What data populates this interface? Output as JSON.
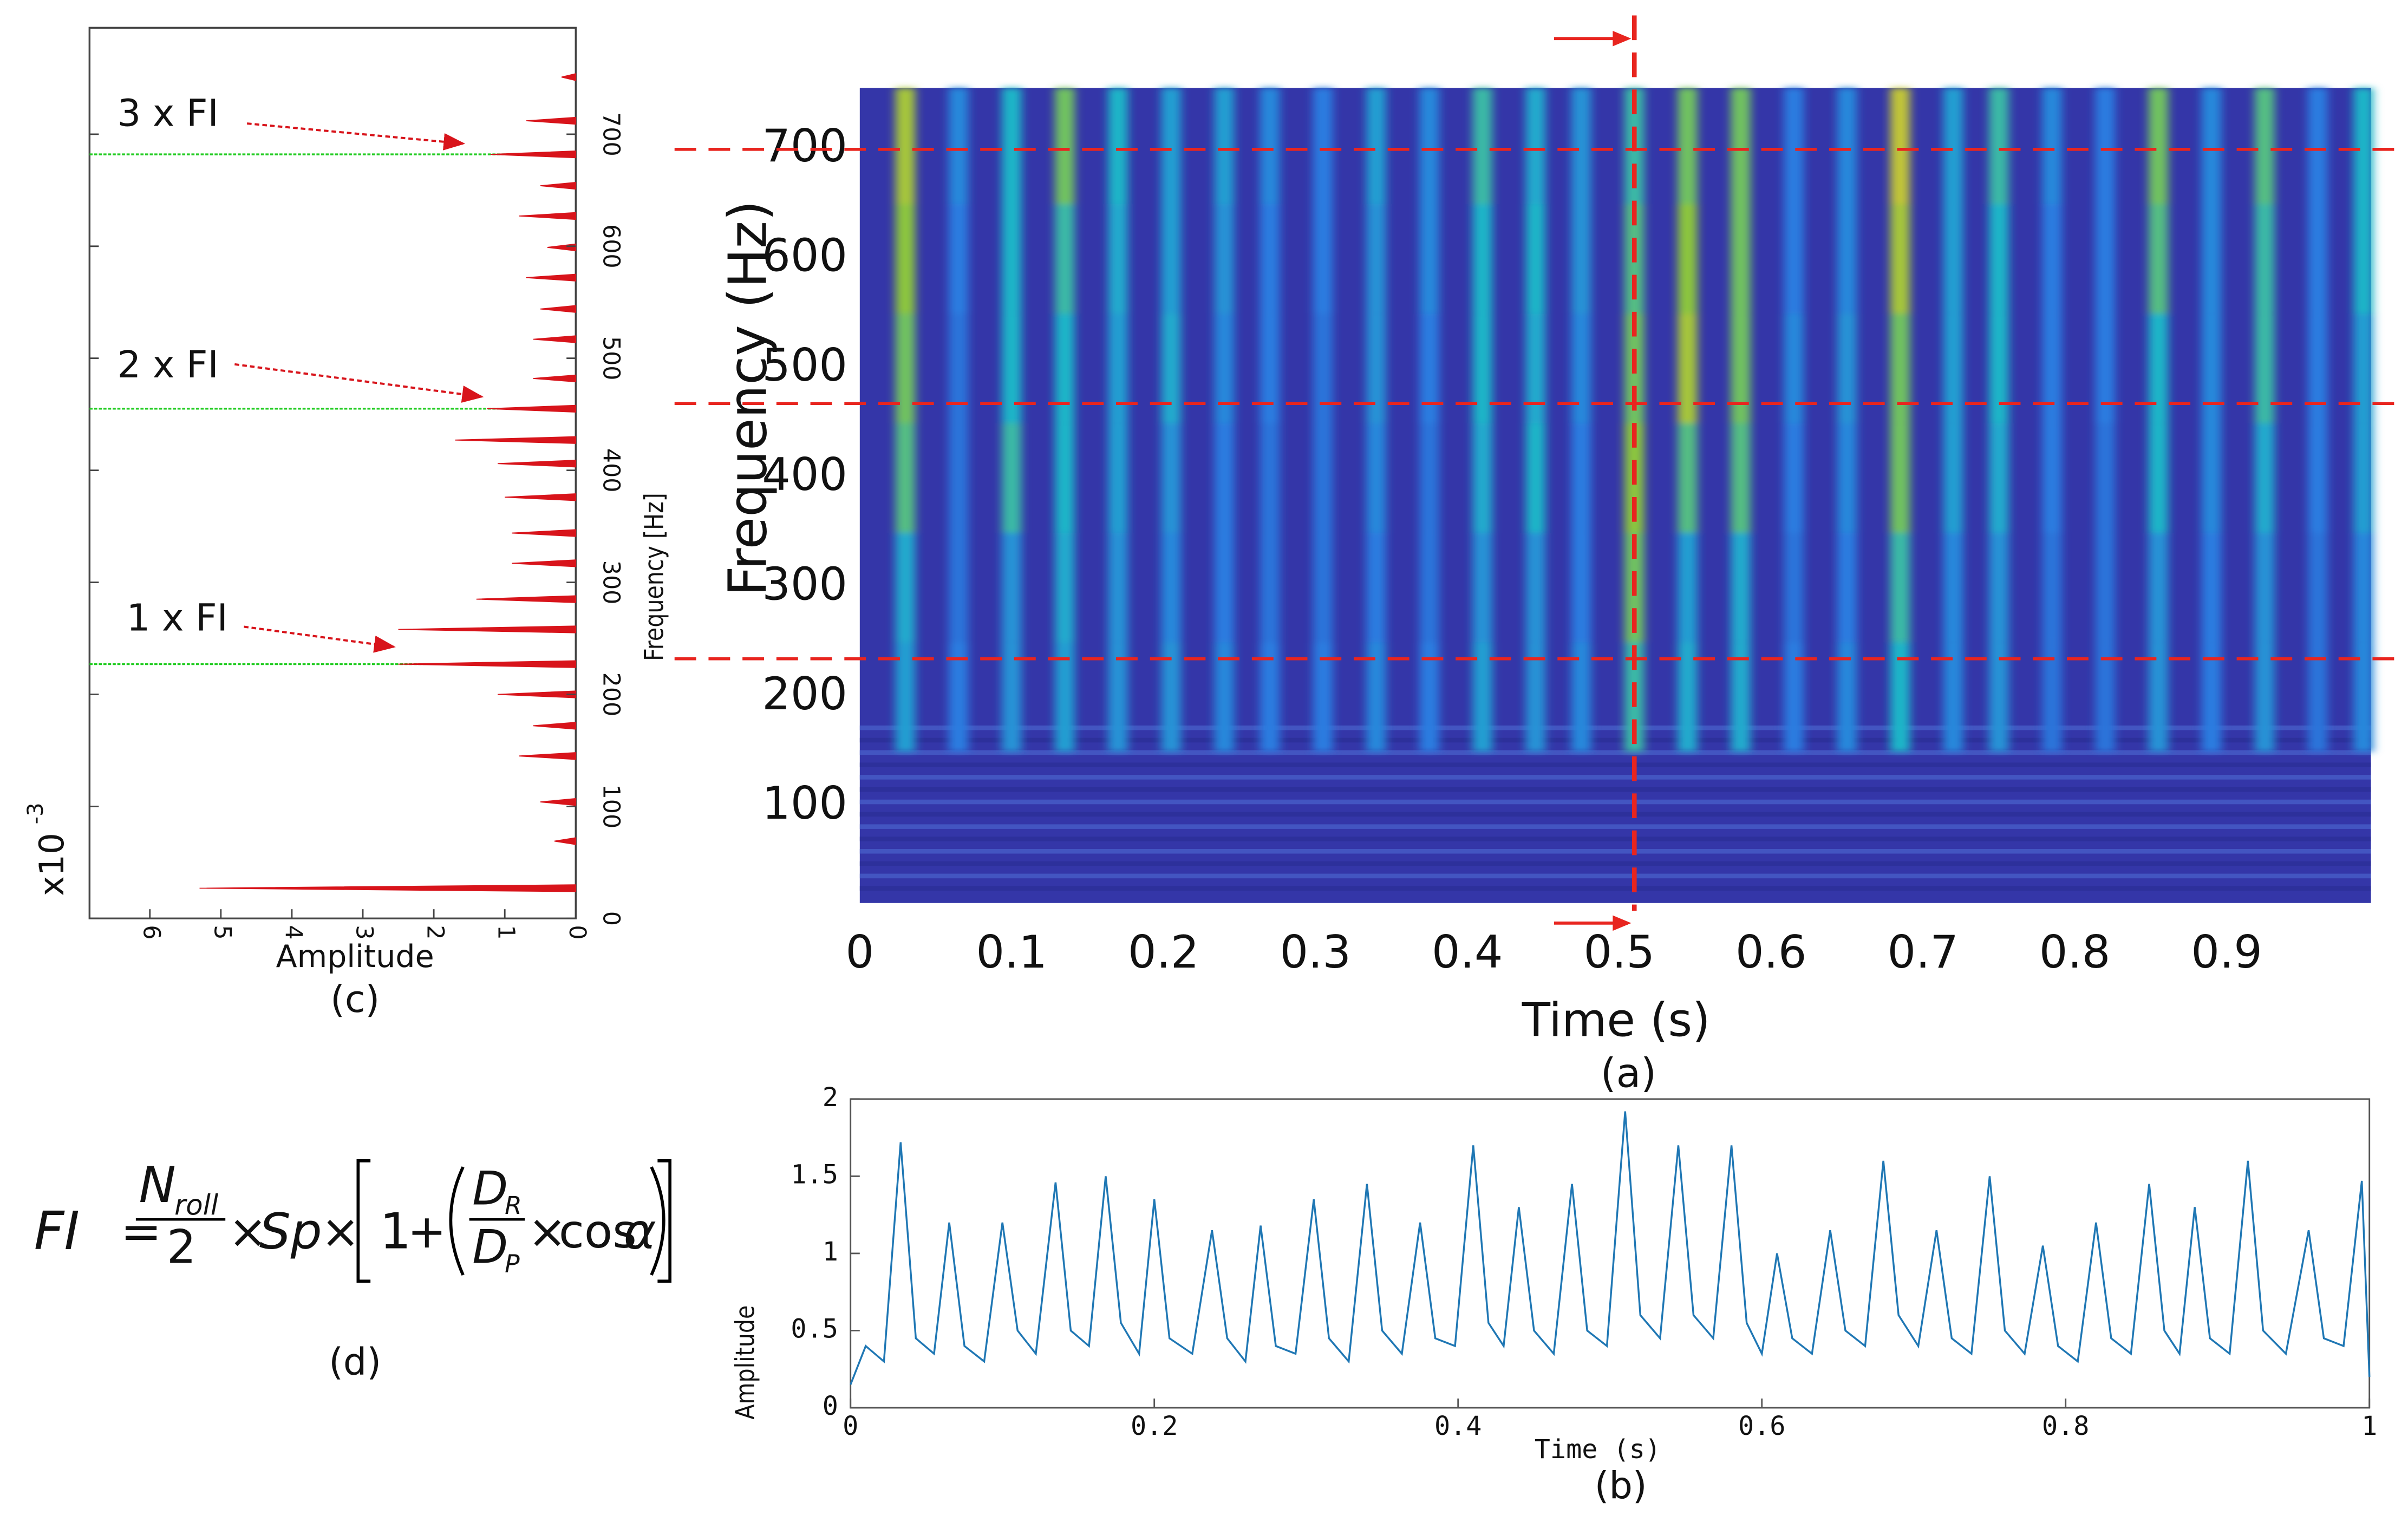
{
  "chart_data": [
    {
      "type": "heatmap",
      "label": "(a)",
      "xlabel": "Time (s)",
      "ylabel": "Frequency (Hz)",
      "xlim": [
        0,
        0.995
      ],
      "xticks": [
        0,
        0.1,
        0.2,
        0.3,
        0.4,
        0.5,
        0.6,
        0.7,
        0.8,
        0.9
      ],
      "ylim": [
        12,
        756
      ],
      "yticks": [
        100,
        200,
        300,
        400,
        500,
        600,
        700
      ],
      "x": [
        0.03,
        0.065,
        0.1,
        0.135,
        0.17,
        0.205,
        0.24,
        0.27,
        0.305,
        0.34,
        0.375,
        0.41,
        0.445,
        0.475,
        0.51,
        0.545,
        0.58,
        0.615,
        0.65,
        0.685,
        0.72,
        0.75,
        0.785,
        0.82,
        0.855,
        0.89,
        0.925,
        0.96,
        0.99
      ],
      "y_bins": [
        150,
        250,
        350,
        450,
        550,
        650,
        756
      ],
      "values": [
        [
          0.5,
          0.55,
          0.7,
          0.75,
          0.8,
          0.85
        ],
        [
          0.35,
          0.3,
          0.3,
          0.3,
          0.35,
          0.4
        ],
        [
          0.45,
          0.45,
          0.65,
          0.6,
          0.6,
          0.6
        ],
        [
          0.5,
          0.55,
          0.6,
          0.6,
          0.65,
          0.75
        ],
        [
          0.45,
          0.45,
          0.5,
          0.5,
          0.55,
          0.6
        ],
        [
          0.45,
          0.4,
          0.45,
          0.55,
          0.5,
          0.5
        ],
        [
          0.4,
          0.35,
          0.35,
          0.4,
          0.45,
          0.5
        ],
        [
          0.35,
          0.3,
          0.3,
          0.35,
          0.35,
          0.4
        ],
        [
          0.35,
          0.3,
          0.3,
          0.3,
          0.35,
          0.35
        ],
        [
          0.4,
          0.35,
          0.4,
          0.45,
          0.45,
          0.5
        ],
        [
          0.35,
          0.3,
          0.3,
          0.35,
          0.4,
          0.4
        ],
        [
          0.5,
          0.45,
          0.55,
          0.6,
          0.6,
          0.65
        ],
        [
          0.45,
          0.45,
          0.6,
          0.55,
          0.6,
          0.55
        ],
        [
          0.4,
          0.35,
          0.35,
          0.4,
          0.45,
          0.45
        ],
        [
          0.65,
          0.75,
          0.8,
          0.75,
          0.7,
          0.65
        ],
        [
          0.55,
          0.5,
          0.7,
          0.85,
          0.8,
          0.75
        ],
        [
          0.55,
          0.55,
          0.7,
          0.75,
          0.75,
          0.75
        ],
        [
          0.35,
          0.3,
          0.35,
          0.4,
          0.35,
          0.35
        ],
        [
          0.4,
          0.35,
          0.4,
          0.45,
          0.4,
          0.4
        ],
        [
          0.6,
          0.65,
          0.75,
          0.75,
          0.85,
          0.9
        ],
        [
          0.4,
          0.4,
          0.5,
          0.5,
          0.5,
          0.5
        ],
        [
          0.45,
          0.45,
          0.55,
          0.6,
          0.6,
          0.65
        ],
        [
          0.3,
          0.3,
          0.35,
          0.35,
          0.35,
          0.4
        ],
        [
          0.3,
          0.3,
          0.3,
          0.35,
          0.35,
          0.35
        ],
        [
          0.45,
          0.45,
          0.6,
          0.6,
          0.7,
          0.75
        ],
        [
          0.35,
          0.35,
          0.4,
          0.4,
          0.4,
          0.4
        ],
        [
          0.45,
          0.45,
          0.55,
          0.65,
          0.65,
          0.7
        ],
        [
          0.3,
          0.3,
          0.35,
          0.35,
          0.35,
          0.35
        ],
        [
          0.4,
          0.4,
          0.5,
          0.5,
          0.6,
          0.6
        ]
      ],
      "hlines": [
        700,
        468,
        235
      ],
      "vline": 0.51,
      "line_color": "#e8251f"
    },
    {
      "type": "line",
      "label": "(b)",
      "xlabel": "Time (s)",
      "ylabel": "Amplitude",
      "color": "#1f77b4",
      "xlim": [
        0,
        1
      ],
      "xticks": [
        0,
        0.2,
        0.4,
        0.6,
        0.8,
        1
      ],
      "ylim": [
        0,
        2
      ],
      "yticks": [
        0,
        0.5,
        1,
        1.5,
        2
      ],
      "x": [
        0,
        0.01,
        0.022,
        0.033,
        0.043,
        0.055,
        0.065,
        0.075,
        0.088,
        0.1,
        0.11,
        0.122,
        0.135,
        0.145,
        0.157,
        0.168,
        0.178,
        0.19,
        0.2,
        0.21,
        0.225,
        0.238,
        0.248,
        0.26,
        0.27,
        0.28,
        0.293,
        0.305,
        0.315,
        0.328,
        0.34,
        0.35,
        0.363,
        0.375,
        0.385,
        0.398,
        0.41,
        0.42,
        0.43,
        0.44,
        0.45,
        0.463,
        0.475,
        0.485,
        0.498,
        0.51,
        0.52,
        0.533,
        0.545,
        0.555,
        0.568,
        0.58,
        0.59,
        0.6,
        0.61,
        0.62,
        0.633,
        0.645,
        0.655,
        0.668,
        0.68,
        0.69,
        0.703,
        0.715,
        0.725,
        0.738,
        0.75,
        0.76,
        0.773,
        0.785,
        0.795,
        0.808,
        0.82,
        0.83,
        0.843,
        0.855,
        0.865,
        0.875,
        0.885,
        0.895,
        0.908,
        0.92,
        0.93,
        0.945,
        0.96,
        0.97,
        0.983,
        0.995,
        1
      ],
      "values": [
        0.15,
        0.4,
        0.3,
        1.72,
        0.45,
        0.35,
        1.2,
        0.4,
        0.3,
        1.2,
        0.5,
        0.35,
        1.46,
        0.5,
        0.4,
        1.5,
        0.55,
        0.35,
        1.35,
        0.45,
        0.35,
        1.15,
        0.45,
        0.3,
        1.18,
        0.4,
        0.35,
        1.35,
        0.45,
        0.3,
        1.45,
        0.5,
        0.35,
        1.2,
        0.45,
        0.4,
        1.7,
        0.55,
        0.4,
        1.3,
        0.5,
        0.35,
        1.45,
        0.5,
        0.4,
        1.92,
        0.6,
        0.45,
        1.7,
        0.6,
        0.45,
        1.7,
        0.55,
        0.35,
        1.0,
        0.45,
        0.35,
        1.15,
        0.5,
        0.4,
        1.6,
        0.6,
        0.4,
        1.15,
        0.45,
        0.35,
        1.5,
        0.5,
        0.35,
        1.05,
        0.4,
        0.3,
        1.2,
        0.45,
        0.35,
        1.45,
        0.5,
        0.35,
        1.3,
        0.45,
        0.35,
        1.6,
        0.5,
        0.35,
        1.15,
        0.45,
        0.4,
        1.47,
        0.2
      ]
    },
    {
      "type": "stem",
      "label": "(c)",
      "xlabel": "Amplitude",
      "ylabel": "Frequency [Hz]",
      "exponent_base": "x10",
      "exponent": "-3",
      "color": "#d8141b",
      "ref_color": "#22cc22",
      "xlim": [
        6.85,
        0
      ],
      "xticks": [
        6,
        5,
        4,
        3,
        2,
        1,
        0
      ],
      "ylim": [
        0,
        795
      ],
      "yticks": [
        0,
        100,
        200,
        300,
        400,
        500,
        600,
        700
      ],
      "y": [
        27,
        69,
        104,
        145,
        172,
        200,
        227,
        258,
        285,
        317,
        344,
        376,
        406,
        427,
        455,
        482,
        517,
        544,
        572,
        599,
        627,
        654,
        682,
        712,
        751
      ],
      "values": [
        5.3,
        0.3,
        0.5,
        0.8,
        0.6,
        1.1,
        2.5,
        2.5,
        1.4,
        0.9,
        0.9,
        1.0,
        1.1,
        1.7,
        1.25,
        0.6,
        0.6,
        0.5,
        0.7,
        0.4,
        0.8,
        0.5,
        1.2,
        0.7,
        0.2
      ],
      "hlines": [
        227,
        455,
        682
      ],
      "annotations": [
        "1 x FI",
        "2 x FI",
        "3 x FI"
      ]
    }
  ],
  "formula": {
    "label": "(d)",
    "lhs": "FI",
    "eq": "=",
    "num": "N",
    "num_sub": "roll",
    "den": "2",
    "times": "×",
    "sp": "Sp",
    "one": "1",
    "plus": "+",
    "dr": "D",
    "dr_sub": "R",
    "dp": "D",
    "dp_sub": "P",
    "cos": "cos",
    "alpha": "α"
  }
}
